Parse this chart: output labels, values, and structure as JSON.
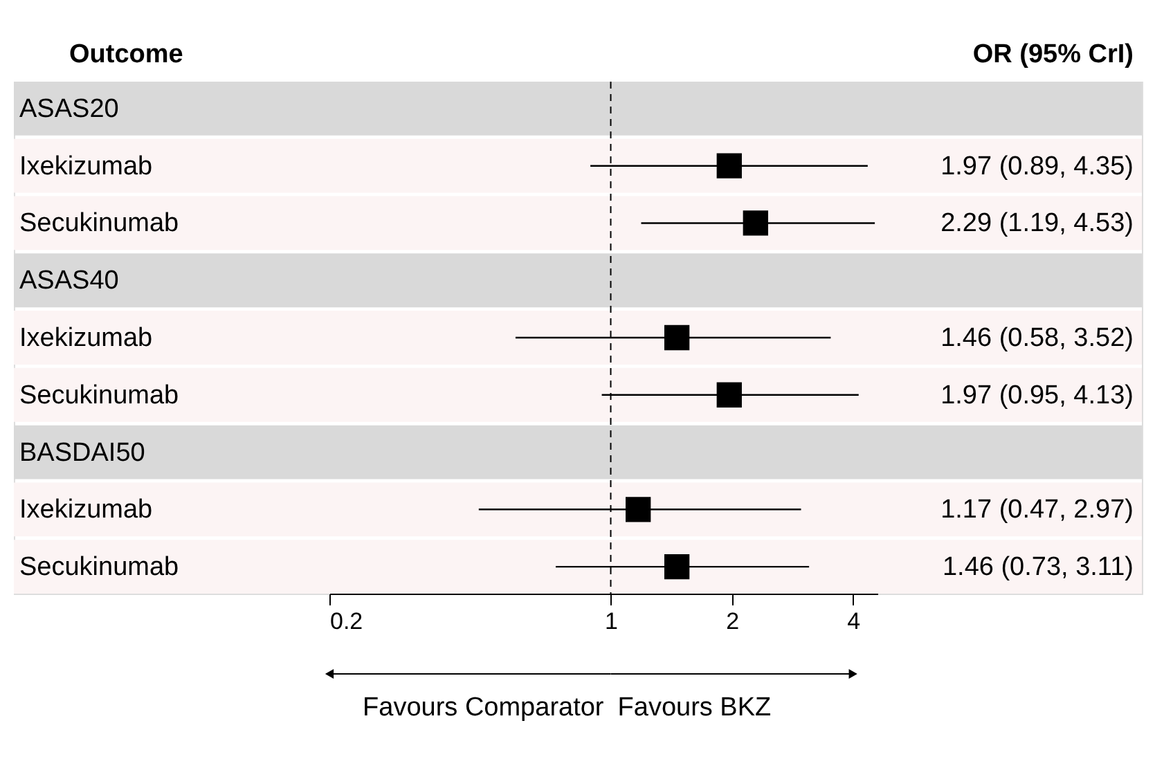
{
  "chart_data": {
    "type": "scatter",
    "orientation": "horizontal",
    "ylabel": "Outcome",
    "y2label": "OR (95% CrI)",
    "categories": [
      "ASAS20",
      "Ixekizumab",
      "Secukinumab",
      "ASAS40",
      "Ixekizumab",
      "Secukinumab",
      "BASDAI50",
      "Ixekizumab",
      "Secukinumab"
    ],
    "values": [
      null,
      1.97,
      2.29,
      null,
      1.46,
      1.97,
      null,
      1.17,
      1.46
    ],
    "errors": [
      null,
      [
        0.89,
        4.35
      ],
      [
        1.19,
        4.53
      ],
      null,
      [
        0.58,
        3.52
      ],
      [
        0.95,
        4.13
      ],
      null,
      [
        0.47,
        2.97
      ],
      [
        0.73,
        3.11
      ]
    ],
    "value_labels": [
      null,
      "1.97 (0.89, 4.35)",
      "2.29 (1.19, 4.53)",
      null,
      "1.46 (0.58, 3.52)",
      "1.97 (0.95, 4.13)",
      null,
      "1.17 (0.47, 2.97)",
      "1.46 (0.73, 3.11)"
    ],
    "color": "#000000",
    "marker": "square",
    "log": "x",
    "xlim": [
      0.2,
      4.6
    ],
    "xticks": [
      0.2,
      1,
      2,
      4
    ],
    "grid": false,
    "ref_lines": [
      {
        "axis": "x",
        "value": 1,
        "line_style": "dashed"
      }
    ],
    "annotations": [
      "Favours Comparator",
      "Favours BKZ"
    ]
  }
}
